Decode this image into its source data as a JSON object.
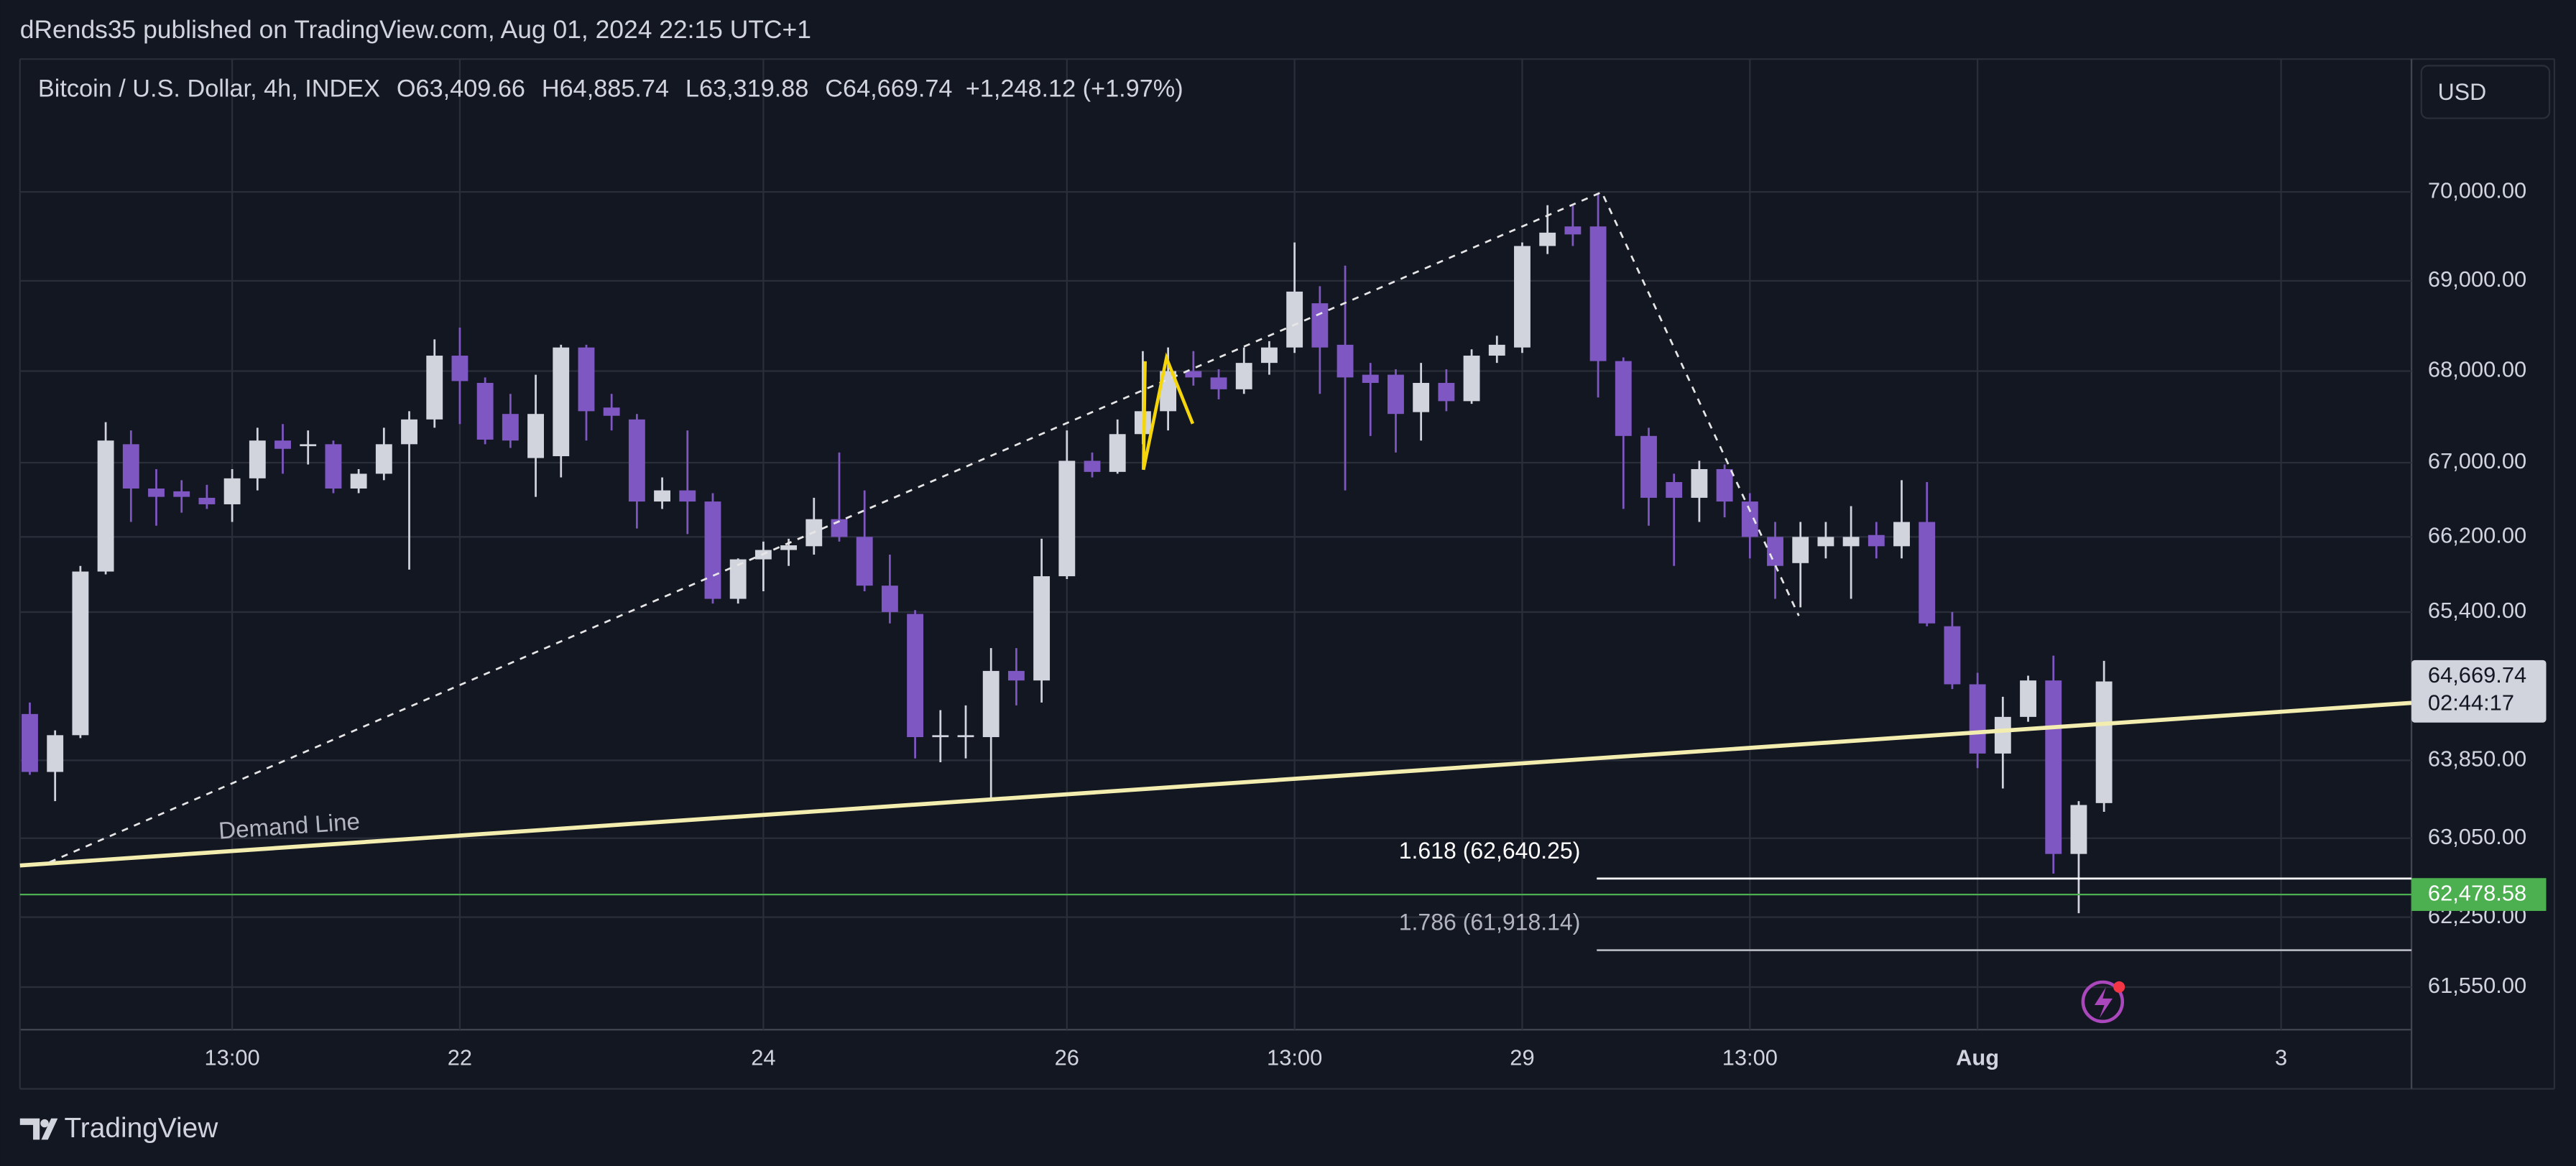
{
  "header": {
    "publisher": "dRends35 published on TradingView.com, Aug 01, 2024 22:15 UTC+1"
  },
  "footer": {
    "brand": "TradingView"
  },
  "chart_data": {
    "type": "candlestick",
    "title": "Bitcoin / U.S. Dollar, 4h, INDEX",
    "ohlc_legend": [
      {
        "key": "O",
        "value": "63,409.66"
      },
      {
        "key": "H",
        "value": "64,885.74"
      },
      {
        "key": "L",
        "value": "63,319.88"
      },
      {
        "key": "C",
        "value": "64,669.74"
      }
    ],
    "change": "+1,248.12 (+1.97%)",
    "currency": "USD",
    "up_color": "#d1d4dc",
    "down_color": "#7e57c2",
    "log": true,
    "grid": true,
    "categories": [
      null,
      null,
      null,
      null,
      null,
      null,
      null,
      null,
      "13:00",
      null,
      null,
      null,
      null,
      null,
      null,
      null,
      null,
      "22",
      null,
      null,
      null,
      null,
      null,
      null,
      null,
      null,
      null,
      null,
      null,
      "24",
      null,
      null,
      null,
      null,
      null,
      null,
      null,
      null,
      null,
      null,
      null,
      "26",
      null,
      null,
      null,
      null,
      null,
      null,
      null,
      null,
      "13:00",
      null,
      null,
      null,
      null,
      null,
      null,
      null,
      null,
      "29",
      null,
      null,
      null,
      null,
      null,
      null,
      null,
      null,
      "13:00",
      null,
      null,
      null,
      null,
      null,
      null,
      null,
      null,
      "Aug",
      null,
      null,
      null,
      null,
      null,
      null,
      null,
      null,
      null,
      null,
      null,
      "3"
    ],
    "open": [
      64330,
      63730,
      64110,
      65830,
      67200,
      66720,
      66690,
      66620,
      66550,
      66830,
      67240,
      67180,
      67200,
      66720,
      66880,
      67200,
      67470,
      68170,
      67870,
      67530,
      67050,
      67070,
      68260,
      67600,
      67470,
      66580,
      66700,
      66580,
      65540,
      65960,
      66060,
      66100,
      66390,
      66200,
      65680,
      65380,
      64090,
      64090,
      64090,
      64780,
      64680,
      65780,
      67020,
      66900,
      67310,
      67560,
      68000,
      67930,
      67800,
      68090,
      68260,
      68750,
      68290,
      67960,
      67960,
      67550,
      67870,
      67670,
      68170,
      68260,
      69390,
      69610,
      69610,
      68110,
      67290,
      66790,
      66620,
      66930,
      66580,
      66200,
      65920,
      66100,
      66100,
      66220,
      66100,
      66360,
      65250,
      64640,
      63920,
      64300,
      64680,
      62890,
      63409.66,
      null,
      null,
      null,
      null,
      null,
      null,
      null
    ],
    "high": [
      64450,
      64160,
      65890,
      67440,
      67350,
      66930,
      66810,
      66760,
      66930,
      67380,
      67420,
      67350,
      67240,
      66930,
      67380,
      67560,
      68350,
      68480,
      67930,
      67750,
      67960,
      68290,
      68290,
      67750,
      67530,
      66840,
      67350,
      66670,
      65970,
      66150,
      66180,
      66620,
      67110,
      66700,
      66010,
      65420,
      64370,
      64420,
      65020,
      65020,
      66180,
      67350,
      67110,
      67470,
      68220,
      68260,
      68220,
      68020,
      68260,
      68330,
      69430,
      68940,
      69170,
      68090,
      68020,
      68090,
      68020,
      68240,
      68390,
      69430,
      69850,
      69850,
      69980,
      68150,
      67380,
      66880,
      67020,
      66980,
      66670,
      66360,
      66360,
      66360,
      66530,
      66360,
      66810,
      66790,
      65400,
      64760,
      64510,
      64730,
      64940,
      63430,
      64885.74,
      null,
      null,
      null,
      null,
      null,
      null,
      null
    ],
    "low": [
      63700,
      63430,
      64080,
      65800,
      66360,
      66320,
      66460,
      66500,
      66360,
      66700,
      66880,
      66980,
      66670,
      66670,
      66810,
      65850,
      67380,
      67420,
      67200,
      67160,
      66630,
      66840,
      67240,
      67350,
      66290,
      66500,
      66230,
      65490,
      65490,
      65620,
      65890,
      66010,
      66150,
      65620,
      65280,
      63870,
      63830,
      63870,
      63440,
      64420,
      64450,
      65750,
      66840,
      66880,
      67200,
      67350,
      67840,
      67690,
      67750,
      67960,
      68200,
      67750,
      66700,
      67290,
      67110,
      67240,
      67560,
      67640,
      68090,
      68200,
      69300,
      69390,
      67710,
      66500,
      66320,
      65890,
      66360,
      66410,
      65970,
      65540,
      65450,
      65970,
      65540,
      65970,
      65970,
      65250,
      64590,
      63770,
      63560,
      64250,
      62690,
      62290,
      63319.88,
      null,
      null,
      null,
      null,
      null,
      null,
      null
    ],
    "close": [
      63730,
      64110,
      65830,
      67240,
      66720,
      66630,
      66630,
      66550,
      66830,
      67240,
      67150,
      67200,
      66720,
      66880,
      67200,
      67470,
      68170,
      67890,
      67250,
      67240,
      67530,
      68260,
      67560,
      67510,
      66580,
      66700,
      66580,
      65540,
      65960,
      66060,
      66110,
      66390,
      66200,
      65680,
      65400,
      64090,
      64110,
      64110,
      64780,
      64680,
      65780,
      67020,
      66900,
      67310,
      67560,
      68000,
      67930,
      67800,
      68090,
      68260,
      68880,
      68260,
      67930,
      67870,
      67530,
      67870,
      67670,
      68170,
      68290,
      69390,
      69540,
      69520,
      68110,
      67290,
      66620,
      66620,
      66930,
      66580,
      66200,
      65890,
      66200,
      66200,
      66200,
      66100,
      66360,
      65280,
      64640,
      63920,
      64300,
      64680,
      62890,
      63390,
      64669.74,
      null,
      null,
      null,
      null,
      null,
      null,
      null
    ],
    "ylim": [
      61127,
      71520
    ],
    "yticks": [
      {
        "value": 70000,
        "label": "70,000.00"
      },
      {
        "value": 69000,
        "label": "69,000.00"
      },
      {
        "value": 68000,
        "label": "68,000.00"
      },
      {
        "value": 67000,
        "label": "67,000.00"
      },
      {
        "value": 66200,
        "label": "66,200.00"
      },
      {
        "value": 65400,
        "label": "65,400.00"
      },
      {
        "value": 63850,
        "label": "63,850.00"
      },
      {
        "value": 63050,
        "label": "63,050.00"
      },
      {
        "value": 62250,
        "label": "62,250.00"
      },
      {
        "value": 61550,
        "label": "61,550.00"
      }
    ],
    "last_price": {
      "value": 64669.74,
      "label": "64,669.74",
      "countdown": "02:44:17"
    },
    "price_line": {
      "value": 62478.58,
      "label": "62,478.58",
      "color": "#4caf50"
    },
    "fib_levels": [
      {
        "value": 62640.25,
        "label": "1.618 (62,640.25)",
        "color": "#ffffff"
      },
      {
        "value": 61918.14,
        "label": "1.786 (61,918.14)",
        "color": "#b2b5be"
      }
    ],
    "annotations": [
      {
        "text": "Demand Line"
      }
    ]
  }
}
